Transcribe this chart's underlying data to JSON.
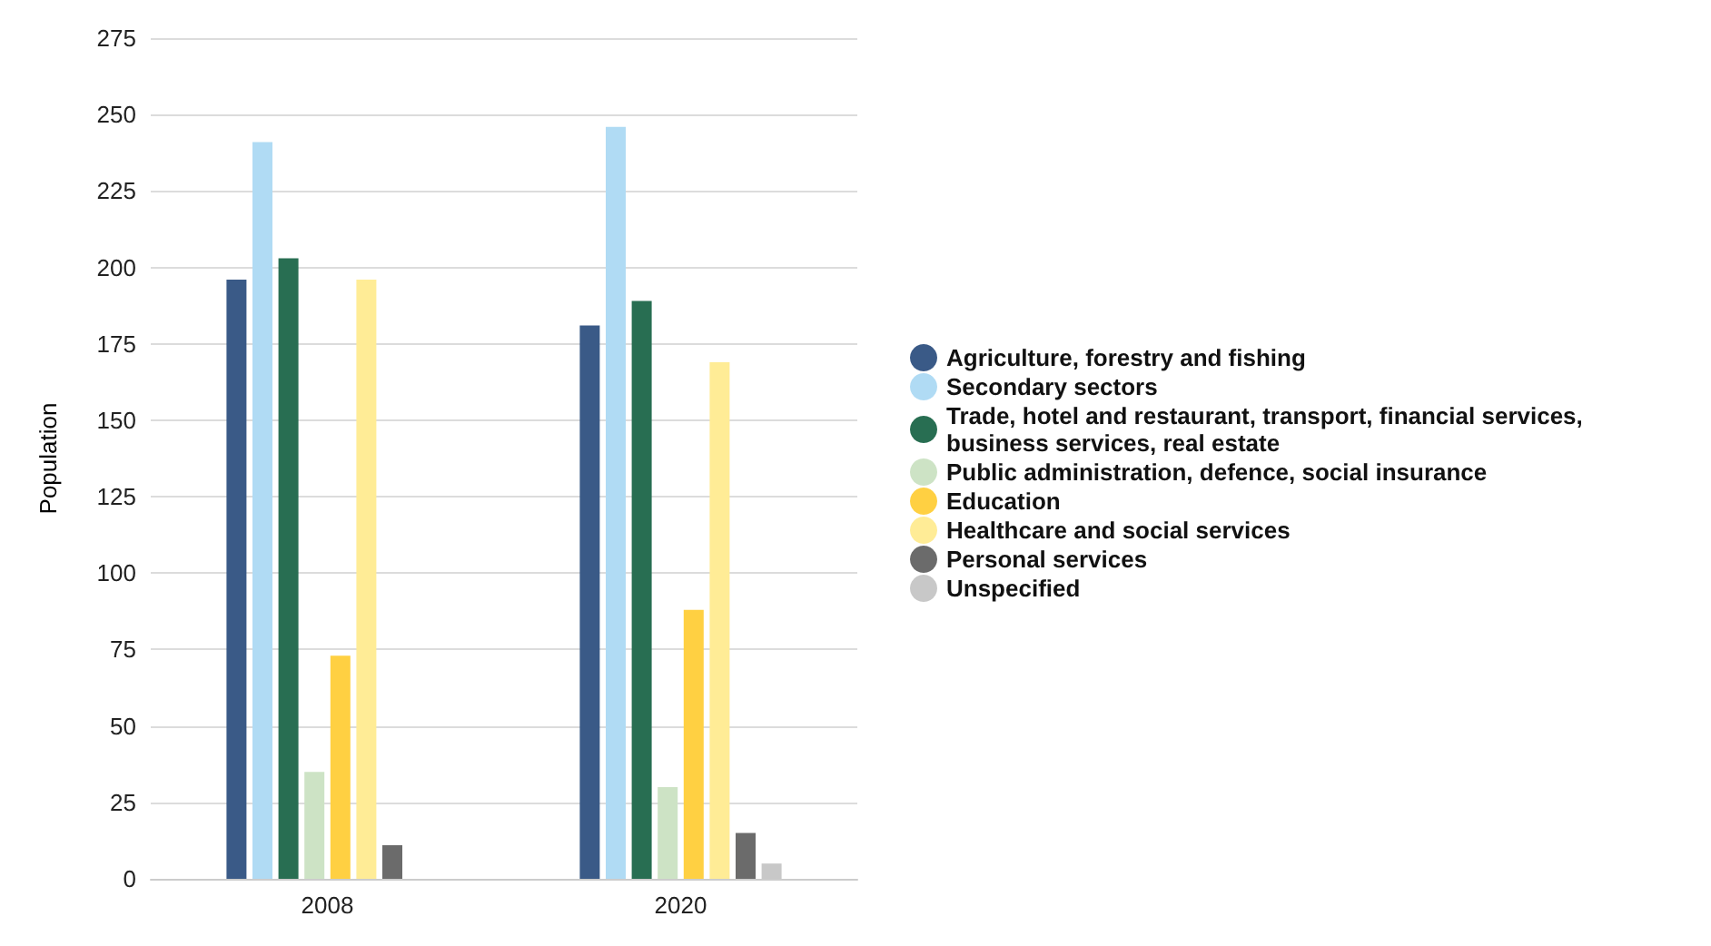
{
  "chart_data": {
    "type": "bar",
    "ylabel": "Population",
    "categories": [
      "2008",
      "2020"
    ],
    "series": [
      {
        "name": "Agriculture, forestry and fishing",
        "color": "#3a5a87",
        "values": [
          196,
          181
        ]
      },
      {
        "name": "Secondary sectors",
        "color": "#b0dbf4",
        "values": [
          241,
          246
        ]
      },
      {
        "name": "Trade, hotel and restaurant, transport, financial services, business services, real estate",
        "color": "#286e52",
        "values": [
          203,
          189
        ]
      },
      {
        "name": "Public administration, defence, social insurance",
        "color": "#cde3c5",
        "values": [
          35,
          30
        ]
      },
      {
        "name": "Education",
        "color": "#ffd042",
        "values": [
          73,
          88
        ]
      },
      {
        "name": "Healthcare and social services",
        "color": "#ffec96",
        "values": [
          196,
          169
        ]
      },
      {
        "name": "Personal services",
        "color": "#6b6b6b",
        "values": [
          11,
          15
        ]
      },
      {
        "name": "Unspecified",
        "color": "#c8c8c8",
        "values": [
          null,
          5
        ]
      }
    ],
    "ylim": [
      0,
      275
    ],
    "yticks": [
      0,
      25,
      50,
      75,
      100,
      125,
      150,
      175,
      200,
      225,
      250,
      275
    ],
    "grid": "y",
    "legend": "right"
  }
}
